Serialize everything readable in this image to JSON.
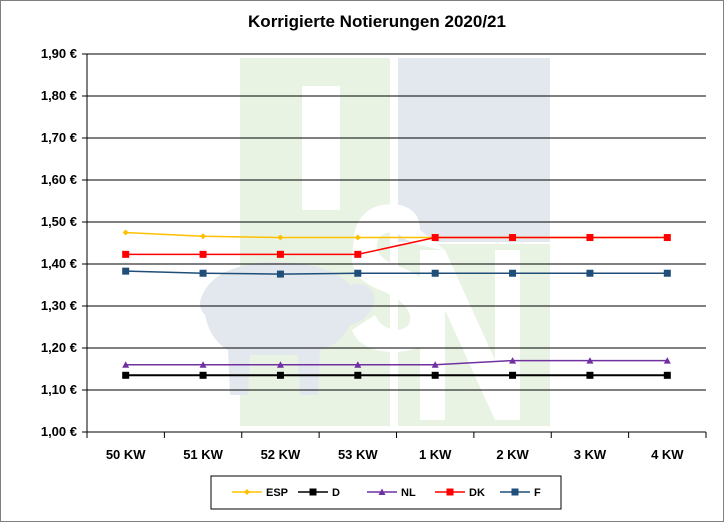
{
  "chart_data": {
    "type": "line",
    "title": "Korrigierte Notierungen 2020/21",
    "categories": [
      "50 KW",
      "51 KW",
      "52 KW",
      "53 KW",
      "1 KW",
      "2 KW",
      "3 KW",
      "4 KW"
    ],
    "ylim": [
      1.0,
      1.9
    ],
    "y_ticks": [
      "1,00 €",
      "1,10 €",
      "1,20 €",
      "1,30 €",
      "1,40 €",
      "1,50 €",
      "1,60 €",
      "1,70 €",
      "1,80 €",
      "1,90 €"
    ],
    "grid": true,
    "legend_position": "bottom",
    "watermark": "ISN",
    "series": [
      {
        "name": "ESP",
        "color": "#ffc000",
        "marker": "diamond",
        "values": [
          1.475,
          1.466,
          1.463,
          1.463,
          1.463,
          1.463,
          1.463,
          1.463
        ]
      },
      {
        "name": "D",
        "color": "#000000",
        "marker": "square",
        "values": [
          1.135,
          1.135,
          1.135,
          1.135,
          1.135,
          1.135,
          1.135,
          1.135
        ]
      },
      {
        "name": "NL",
        "color": "#7030a0",
        "marker": "triangle",
        "values": [
          1.16,
          1.16,
          1.16,
          1.16,
          1.16,
          1.17,
          1.17,
          1.17
        ]
      },
      {
        "name": "DK",
        "color": "#ff0000",
        "marker": "square",
        "values": [
          1.423,
          1.423,
          1.423,
          1.423,
          1.463,
          1.463,
          1.463,
          1.463
        ]
      },
      {
        "name": "F",
        "color": "#1f4e79",
        "marker": "square",
        "values": [
          1.383,
          1.378,
          1.376,
          1.378,
          1.378,
          1.378,
          1.378,
          1.378
        ]
      }
    ]
  }
}
